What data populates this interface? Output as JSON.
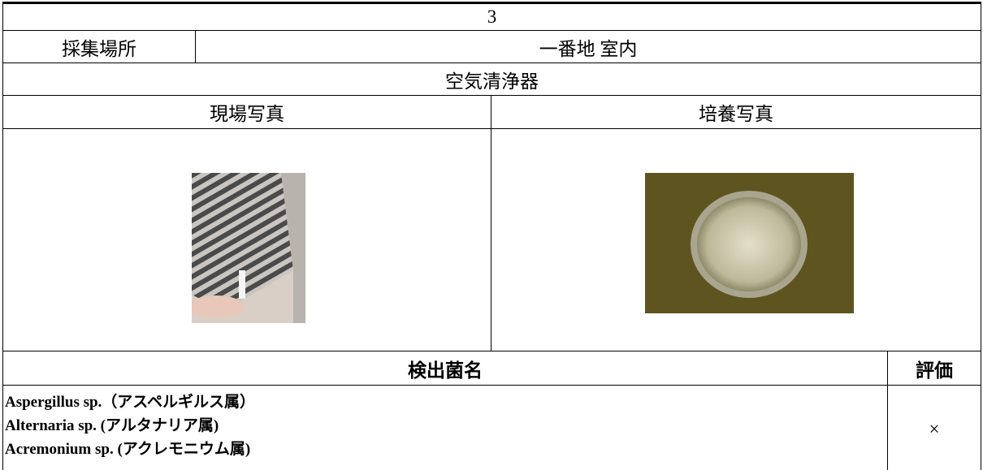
{
  "header": {
    "number": "3"
  },
  "location": {
    "label": "採集場所",
    "value": "一番地 室内"
  },
  "subject": "空気清浄器",
  "photos": {
    "site": "現場写真",
    "culture": "培養写真"
  },
  "results": {
    "species_header": "検出菌名",
    "evaluation_header": "評価",
    "species": [
      "Aspergillus sp.（アスペルギルス属）",
      "Alternaria sp. (アルタナリア属)",
      "Acremonium sp. (アクレモニウム属)"
    ],
    "evaluation": "×"
  }
}
